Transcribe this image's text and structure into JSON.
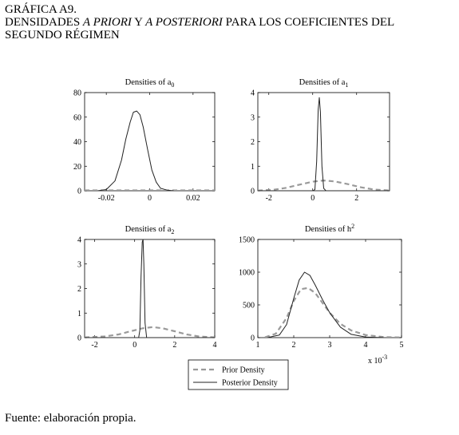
{
  "figure": {
    "label": "GRÁFICA A9.",
    "subtitle_parts": [
      {
        "text": "DENSIDADES ",
        "italic": false
      },
      {
        "text": "A PRIORI",
        "italic": true
      },
      {
        "text": " Y ",
        "italic": false
      },
      {
        "text": "A POSTERIORI",
        "italic": true
      },
      {
        "text": " PARA LOS COEFICIENTES DEL",
        "italic": false
      }
    ],
    "subtitle_line2": "SEGUNDO RÉGIMEN",
    "source": "Fuente: elaboración propia."
  },
  "legend": {
    "items": [
      {
        "label": "Prior Density",
        "style": "dashed",
        "color": "#9a9a9a"
      },
      {
        "label": "Posterior Density",
        "style": "solid",
        "color": "#222222"
      }
    ]
  },
  "chart_data": [
    {
      "type": "line",
      "title": "Densities of a",
      "title_sub": "0",
      "xlim": [
        -0.03,
        0.03
      ],
      "ylim": [
        0,
        80
      ],
      "xticks": [
        -0.02,
        0,
        0.02
      ],
      "xtick_labels": [
        "-0.02",
        "0",
        "0.02"
      ],
      "yticks": [
        0,
        20,
        40,
        60,
        80
      ],
      "ytick_labels": [
        "0",
        "20",
        "40",
        "60",
        "80"
      ],
      "series": [
        {
          "name": "Prior Density",
          "style": "dashed",
          "x": [
            -0.03,
            0.03
          ],
          "y": [
            0.3,
            0.3
          ]
        },
        {
          "name": "Posterior Density",
          "style": "solid",
          "x": [
            -0.024,
            -0.02,
            -0.016,
            -0.013,
            -0.011,
            -0.009,
            -0.0075,
            -0.006,
            -0.0045,
            -0.003,
            -0.001,
            0.001,
            0.003,
            0.005,
            0.008,
            0.011
          ],
          "y": [
            0,
            1,
            8,
            25,
            42,
            56,
            64,
            65,
            62,
            52,
            34,
            17,
            7,
            2,
            0.5,
            0
          ]
        }
      ]
    },
    {
      "type": "line",
      "title": "Densities of a",
      "title_sub": "1",
      "xlim": [
        -2.5,
        3.5
      ],
      "ylim": [
        0,
        4
      ],
      "xticks": [
        -2,
        0,
        2
      ],
      "xtick_labels": [
        "-2",
        "0",
        "2"
      ],
      "yticks": [
        0,
        1,
        2,
        3,
        4
      ],
      "ytick_labels": [
        "0",
        "1",
        "2",
        "3",
        "4"
      ],
      "series": [
        {
          "name": "Prior Density",
          "style": "dashed",
          "x": [
            -2.5,
            -1.8,
            -1.2,
            -0.6,
            0,
            0.5,
            1.0,
            1.6,
            2.2,
            2.8,
            3.5
          ],
          "y": [
            0.01,
            0.04,
            0.12,
            0.25,
            0.37,
            0.42,
            0.38,
            0.27,
            0.14,
            0.05,
            0.01
          ]
        },
        {
          "name": "Posterior Density",
          "style": "solid",
          "x": [
            -2.5,
            0.0,
            0.1,
            0.18,
            0.25,
            0.3,
            0.35,
            0.42,
            0.5,
            0.6,
            3.5
          ],
          "y": [
            0,
            0,
            0.05,
            1.2,
            3.3,
            3.8,
            3.2,
            1.0,
            0.1,
            0,
            0
          ]
        }
      ]
    },
    {
      "type": "line",
      "title": "Densities of a",
      "title_sub": "2",
      "xlim": [
        -2.5,
        4
      ],
      "ylim": [
        0,
        4
      ],
      "xticks": [
        -2,
        0,
        2,
        4
      ],
      "xtick_labels": [
        "-2",
        "0",
        "2",
        "4"
      ],
      "yticks": [
        0,
        1,
        2,
        3,
        4
      ],
      "ytick_labels": [
        "0",
        "1",
        "2",
        "3",
        "4"
      ],
      "series": [
        {
          "name": "Prior Density",
          "style": "dashed",
          "x": [
            -2.5,
            -1.5,
            -0.8,
            -0.2,
            0.4,
            0.9,
            1.4,
            2.0,
            2.6,
            3.2,
            4.0
          ],
          "y": [
            0.01,
            0.05,
            0.13,
            0.26,
            0.38,
            0.43,
            0.38,
            0.26,
            0.13,
            0.05,
            0.01
          ]
        },
        {
          "name": "Posterior Density",
          "style": "solid",
          "x": [
            -2.5,
            0.2,
            0.26,
            0.32,
            0.38,
            0.42,
            0.46,
            0.52,
            0.6,
            4.0
          ],
          "y": [
            0,
            0,
            0.3,
            2.5,
            3.9,
            4.0,
            3.0,
            0.6,
            0,
            0
          ]
        }
      ]
    },
    {
      "type": "line",
      "title": "Densities of h",
      "title_sup": "2",
      "multiplier": "x 10",
      "multiplier_exp": "-3",
      "xlim": [
        1,
        5
      ],
      "ylim": [
        0,
        1500
      ],
      "xticks": [
        1,
        2,
        3,
        4,
        5
      ],
      "xtick_labels": [
        "1",
        "2",
        "3",
        "4",
        "5"
      ],
      "yticks": [
        0,
        500,
        1000,
        1500
      ],
      "ytick_labels": [
        "0",
        "500",
        "1000",
        "1500"
      ],
      "series": [
        {
          "name": "Prior Density",
          "style": "dashed",
          "x": [
            1.2,
            1.5,
            1.8,
            2.0,
            2.2,
            2.4,
            2.6,
            2.8,
            3.0,
            3.3,
            3.6,
            4.0,
            4.5,
            5.0
          ],
          "y": [
            5,
            60,
            300,
            560,
            740,
            760,
            680,
            530,
            380,
            210,
            110,
            40,
            10,
            2
          ]
        },
        {
          "name": "Posterior Density",
          "style": "solid",
          "x": [
            1.3,
            1.6,
            1.8,
            2.0,
            2.15,
            2.3,
            2.45,
            2.6,
            2.8,
            3.0,
            3.3,
            3.6,
            4.0,
            4.5
          ],
          "y": [
            5,
            40,
            200,
            600,
            880,
            1000,
            950,
            800,
            580,
            380,
            160,
            50,
            10,
            0
          ]
        }
      ]
    }
  ]
}
